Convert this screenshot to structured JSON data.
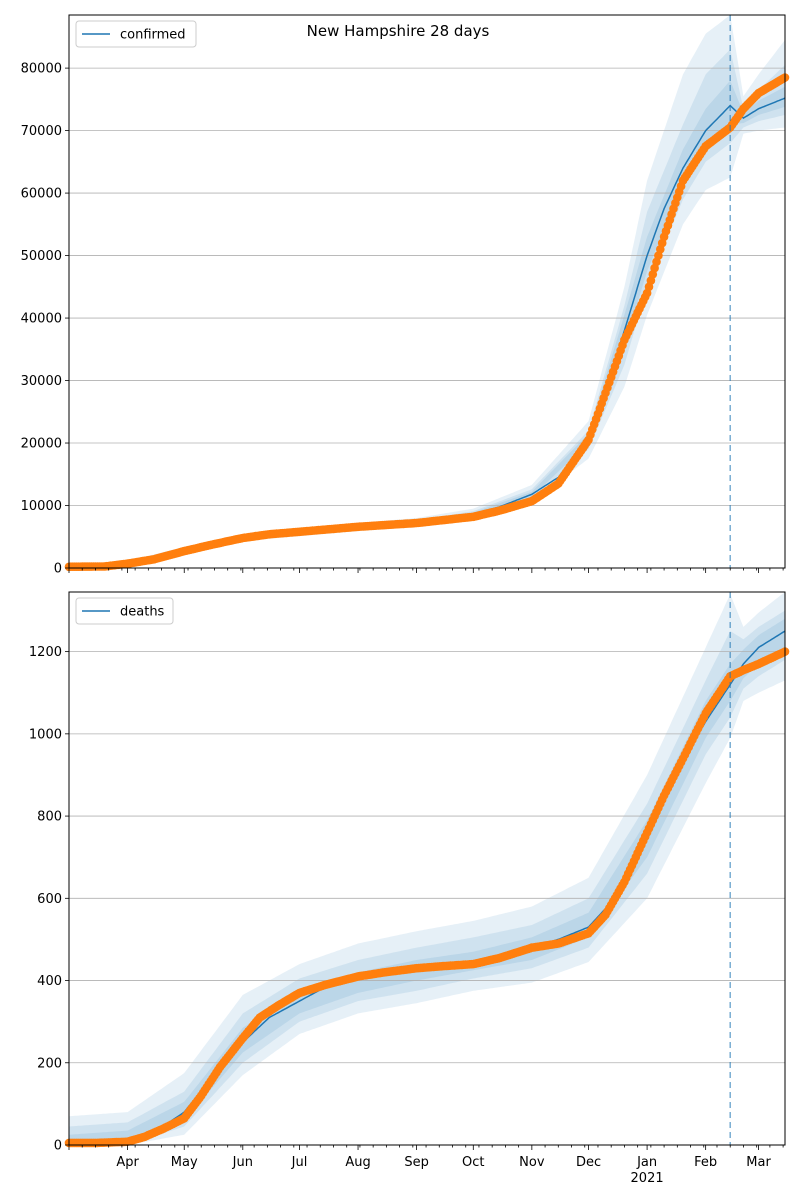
{
  "chart_data": [
    {
      "type": "line",
      "title": "New Hampshire 28 days",
      "xlabel": "",
      "ylabel": "",
      "x_range": [
        "2020-03-01",
        "2021-03-15"
      ],
      "ylim": [
        0,
        88500
      ],
      "yticks": [
        0,
        10000,
        20000,
        30000,
        40000,
        50000,
        60000,
        70000,
        80000
      ],
      "ytick_labels": [
        "0",
        "10000",
        "20000",
        "30000",
        "40000",
        "50000",
        "60000",
        "70000",
        "80000"
      ],
      "grid": "horizontal",
      "legend_position": "top-left",
      "forecast_start": "2021-02-14",
      "series": [
        {
          "name": "confirmed",
          "kind": "model",
          "color": "#1f77b4",
          "x": [
            "2020-03-01",
            "2020-03-20",
            "2020-04-01",
            "2020-04-15",
            "2020-05-01",
            "2020-05-15",
            "2020-06-01",
            "2020-06-15",
            "2020-07-01",
            "2020-08-01",
            "2020-09-01",
            "2020-10-01",
            "2020-10-15",
            "2020-11-01",
            "2020-11-15",
            "2020-12-01",
            "2020-12-10",
            "2020-12-20",
            "2021-01-01",
            "2021-01-10",
            "2021-01-20",
            "2021-02-01",
            "2021-02-14",
            "2021-02-21",
            "2021-03-01",
            "2021-03-15"
          ],
          "y": [
            100,
            200,
            700,
            1500,
            2800,
            3800,
            4800,
            5300,
            5700,
            6500,
            7200,
            8600,
            9800,
            11800,
            14500,
            21000,
            28500,
            38000,
            50000,
            57500,
            64000,
            70000,
            74000,
            72000,
            73500,
            75200
          ]
        },
        {
          "name": "",
          "kind": "observed",
          "color": "#ff7f0e",
          "x": [
            "2020-03-01",
            "2020-03-20",
            "2020-04-01",
            "2020-04-15",
            "2020-05-01",
            "2020-05-15",
            "2020-06-01",
            "2020-06-15",
            "2020-07-01",
            "2020-08-01",
            "2020-09-01",
            "2020-10-01",
            "2020-10-15",
            "2020-11-01",
            "2020-11-15",
            "2020-12-01",
            "2020-12-10",
            "2020-12-20",
            "2021-01-01",
            "2021-01-10",
            "2021-01-20",
            "2021-02-01",
            "2021-02-14",
            "2021-02-21",
            "2021-03-01",
            "2021-03-15"
          ],
          "y": [
            200,
            250,
            700,
            1400,
            2700,
            3700,
            4800,
            5400,
            5800,
            6600,
            7200,
            8200,
            9200,
            10700,
            13500,
            20500,
            28000,
            36500,
            44000,
            53000,
            62000,
            67500,
            70500,
            73500,
            76000,
            78500
          ]
        }
      ],
      "bands": [
        {
          "x": [
            "2020-03-01",
            "2020-04-01",
            "2020-05-01",
            "2020-06-01",
            "2020-07-01",
            "2020-08-01",
            "2020-09-01",
            "2020-10-01",
            "2020-11-01",
            "2020-12-01",
            "2020-12-20",
            "2021-01-01",
            "2021-01-20",
            "2021-02-01",
            "2021-02-14",
            "2021-02-21",
            "2021-03-01",
            "2021-03-15"
          ],
          "lower": [
            0,
            500,
            2400,
            4300,
            5100,
            5900,
            6600,
            7800,
            10600,
            17500,
            29000,
            40500,
            55000,
            60500,
            62500,
            69500,
            70000,
            70500
          ],
          "upper": [
            400,
            1100,
            3400,
            5400,
            6400,
            7200,
            8000,
            9500,
            13300,
            23500,
            45000,
            62000,
            79000,
            85500,
            88500,
            75500,
            79000,
            84500
          ]
        },
        {
          "x": [
            "2020-03-01",
            "2020-04-01",
            "2020-05-01",
            "2020-06-01",
            "2020-07-01",
            "2020-08-01",
            "2020-09-01",
            "2020-10-01",
            "2020-11-01",
            "2020-12-01",
            "2020-12-20",
            "2021-01-01",
            "2021-01-20",
            "2021-02-01",
            "2021-02-14",
            "2021-02-21",
            "2021-03-01",
            "2021-03-15"
          ],
          "lower": [
            20,
            600,
            2550,
            4500,
            5300,
            6100,
            6850,
            8100,
            11100,
            19000,
            32500,
            45000,
            59000,
            65000,
            68000,
            70500,
            71500,
            72500
          ],
          "upper": [
            300,
            900,
            3150,
            5150,
            6150,
            6950,
            7650,
            9100,
            12600,
            22000,
            42000,
            57000,
            71000,
            79000,
            83000,
            73500,
            76500,
            80500
          ]
        },
        {
          "x": [
            "2020-03-01",
            "2020-04-01",
            "2020-05-01",
            "2020-06-01",
            "2020-07-01",
            "2020-08-01",
            "2020-09-01",
            "2020-10-01",
            "2020-11-01",
            "2020-12-01",
            "2020-12-20",
            "2021-01-01",
            "2021-01-20",
            "2021-02-01",
            "2021-02-14",
            "2021-02-21",
            "2021-03-01",
            "2021-03-15"
          ],
          "lower": [
            50,
            650,
            2650,
            4650,
            5500,
            6300,
            7000,
            8300,
            11400,
            20000,
            35500,
            47500,
            61500,
            67500,
            71000,
            71200,
            72500,
            73800
          ],
          "upper": [
            200,
            800,
            3000,
            5000,
            5950,
            6750,
            7450,
            8900,
            12200,
            21500,
            40500,
            53000,
            67000,
            73500,
            78000,
            72800,
            74800,
            77000
          ]
        }
      ]
    },
    {
      "type": "line",
      "title": "",
      "xlabel": "",
      "ylabel": "",
      "x_range": [
        "2020-03-01",
        "2021-03-15"
      ],
      "ylim": [
        0,
        1345
      ],
      "yticks": [
        0,
        200,
        400,
        600,
        800,
        1000,
        1200
      ],
      "ytick_labels": [
        "0",
        "200",
        "400",
        "600",
        "800",
        "1000",
        "1200"
      ],
      "grid": "horizontal",
      "legend_position": "top-left",
      "forecast_start": "2021-02-14",
      "x_tick_labels": [
        {
          "date": "2020-04-01",
          "label": "Apr"
        },
        {
          "date": "2020-05-01",
          "label": "May"
        },
        {
          "date": "2020-06-01",
          "label": "Jun"
        },
        {
          "date": "2020-07-01",
          "label": "Jul"
        },
        {
          "date": "2020-08-01",
          "label": "Aug"
        },
        {
          "date": "2020-09-01",
          "label": "Sep"
        },
        {
          "date": "2020-10-01",
          "label": "Oct"
        },
        {
          "date": "2020-11-01",
          "label": "Nov"
        },
        {
          "date": "2020-12-01",
          "label": "Dec"
        },
        {
          "date": "2021-01-01",
          "label": "Jan"
        },
        {
          "date": "2021-02-01",
          "label": "Feb"
        },
        {
          "date": "2021-03-01",
          "label": "Mar"
        }
      ],
      "year_label": {
        "date": "2021-01-01",
        "label": "2021"
      },
      "series": [
        {
          "name": "deaths",
          "kind": "model",
          "color": "#1f77b4",
          "x": [
            "2020-03-01",
            "2020-03-15",
            "2020-04-01",
            "2020-04-15",
            "2020-05-01",
            "2020-05-15",
            "2020-06-01",
            "2020-06-15",
            "2020-07-01",
            "2020-07-15",
            "2020-08-01",
            "2020-09-01",
            "2020-10-01",
            "2020-10-15",
            "2020-11-01",
            "2020-11-15",
            "2020-12-01",
            "2020-12-15",
            "2021-01-01",
            "2021-01-15",
            "2021-02-01",
            "2021-02-14",
            "2021-02-21",
            "2021-03-01",
            "2021-03-15"
          ],
          "y": [
            5,
            5,
            10,
            30,
            80,
            160,
            250,
            310,
            350,
            385,
            405,
            425,
            440,
            455,
            480,
            500,
            530,
            600,
            760,
            900,
            1030,
            1120,
            1170,
            1210,
            1250
          ]
        },
        {
          "name": "",
          "kind": "observed",
          "color": "#ff7f0e",
          "x": [
            "2020-03-01",
            "2020-03-15",
            "2020-04-01",
            "2020-04-10",
            "2020-04-20",
            "2020-05-01",
            "2020-05-10",
            "2020-05-20",
            "2020-06-01",
            "2020-06-10",
            "2020-06-20",
            "2020-07-01",
            "2020-07-15",
            "2020-08-01",
            "2020-08-15",
            "2020-09-01",
            "2020-09-15",
            "2020-10-01",
            "2020-10-15",
            "2020-11-01",
            "2020-11-15",
            "2020-12-01",
            "2020-12-10",
            "2020-12-20",
            "2021-01-01",
            "2021-01-10",
            "2021-01-20",
            "2021-02-01",
            "2021-02-14",
            "2021-02-21",
            "2021-03-01",
            "2021-03-15"
          ],
          "y": [
            5,
            5,
            8,
            20,
            40,
            65,
            120,
            190,
            260,
            310,
            340,
            370,
            390,
            410,
            420,
            430,
            435,
            440,
            455,
            480,
            490,
            515,
            560,
            640,
            760,
            850,
            940,
            1050,
            1140,
            1155,
            1170,
            1200
          ]
        }
      ],
      "bands": [
        {
          "x": [
            "2020-03-01",
            "2020-04-01",
            "2020-05-01",
            "2020-06-01",
            "2020-07-01",
            "2020-08-01",
            "2020-09-01",
            "2020-10-01",
            "2020-11-01",
            "2020-12-01",
            "2021-01-01",
            "2021-02-01",
            "2021-02-14",
            "2021-02-21",
            "2021-03-01",
            "2021-03-15"
          ],
          "lower": [
            0,
            0,
            25,
            170,
            270,
            320,
            345,
            375,
            395,
            445,
            600,
            880,
            990,
            1080,
            1100,
            1130
          ],
          "upper": [
            70,
            80,
            175,
            365,
            440,
            490,
            520,
            545,
            580,
            650,
            900,
            1210,
            1340,
            1260,
            1295,
            1345
          ]
        },
        {
          "x": [
            "2020-03-01",
            "2020-04-01",
            "2020-05-01",
            "2020-06-01",
            "2020-07-01",
            "2020-08-01",
            "2020-09-01",
            "2020-10-01",
            "2020-11-01",
            "2020-12-01",
            "2021-01-01",
            "2021-02-01",
            "2021-02-14",
            "2021-02-21",
            "2021-03-01",
            "2021-03-15"
          ],
          "lower": [
            0,
            0,
            45,
            200,
            300,
            350,
            375,
            405,
            430,
            480,
            660,
            950,
            1040,
            1110,
            1140,
            1180
          ],
          "upper": [
            45,
            55,
            130,
            320,
            405,
            450,
            480,
            505,
            535,
            600,
            830,
            1130,
            1250,
            1230,
            1260,
            1300
          ]
        },
        {
          "x": [
            "2020-03-01",
            "2020-04-01",
            "2020-05-01",
            "2020-06-01",
            "2020-07-01",
            "2020-08-01",
            "2020-09-01",
            "2020-10-01",
            "2020-11-01",
            "2020-12-01",
            "2021-01-01",
            "2021-02-01",
            "2021-02-14",
            "2021-02-21",
            "2021-03-01",
            "2021-03-15"
          ],
          "lower": [
            0,
            2,
            60,
            225,
            320,
            370,
            400,
            425,
            450,
            505,
            700,
            990,
            1080,
            1135,
            1170,
            1210
          ],
          "upper": [
            25,
            35,
            105,
            285,
            375,
            420,
            450,
            470,
            505,
            565,
            790,
            1080,
            1170,
            1205,
            1240,
            1280
          ]
        }
      ]
    }
  ]
}
